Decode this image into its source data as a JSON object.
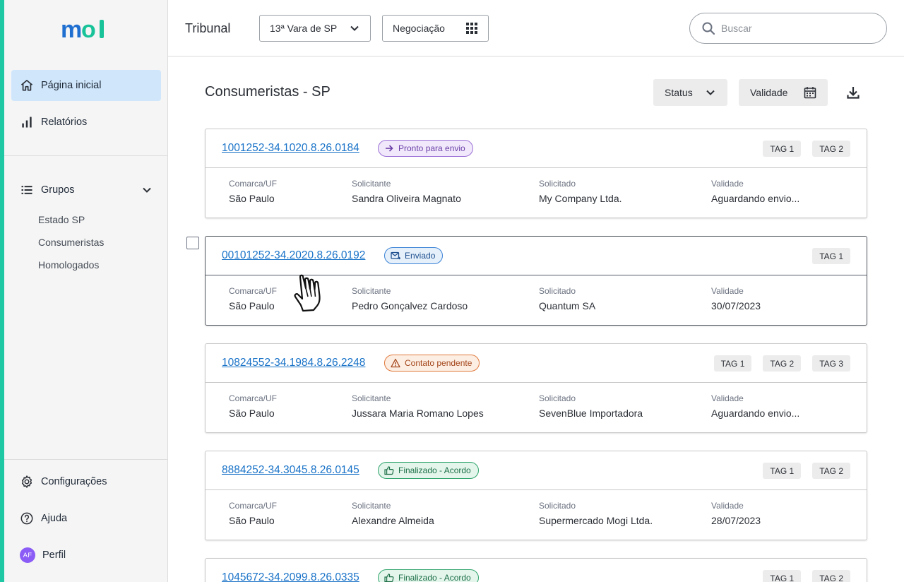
{
  "brand": {
    "logo_text": "mol",
    "accent_color": "#1ec8a5",
    "logo_blue": "#1f6fd1",
    "logo_green": "#19c39a"
  },
  "sidebar": {
    "primary": [
      {
        "label": "Página inicial",
        "icon": "home-icon",
        "active": true
      },
      {
        "label": "Relatórios",
        "icon": "bar-chart-icon",
        "active": false
      }
    ],
    "groups": {
      "label": "Grupos",
      "icon": "list-icon",
      "items": [
        "Estado SP",
        "Consumeristas",
        "Homologados"
      ]
    },
    "bottom": [
      {
        "label": "Configurações",
        "icon": "gear-icon"
      },
      {
        "label": "Ajuda",
        "icon": "help-icon"
      },
      {
        "label": "Perfil",
        "icon": "avatar",
        "avatar_initials": "AF"
      }
    ]
  },
  "topbar": {
    "title": "Tribunal",
    "court_select": "13ª Vara de SP",
    "mode_select": "Negociação",
    "search_placeholder": "Buscar"
  },
  "main": {
    "title": "Consumeristas - SP",
    "filters": {
      "status": "Status",
      "validity": "Validade"
    },
    "field_labels": {
      "comarca": "Comarca/UF",
      "solicitante": "Solicitante",
      "solicitado": "Solicitado",
      "validade": "Validade"
    },
    "cases": [
      {
        "number": "1001252-34.1020.8.26.0184",
        "status": "Pronto para envio",
        "status_icon": "arrow-right-icon",
        "status_bg": "#f1e9fb",
        "status_border": "#9b6fd6",
        "status_color": "#6b3fa8",
        "tags": [
          "TAG 1",
          "TAG 2"
        ],
        "comarca": "São Paulo",
        "solicitante": "Sandra Oliveira Magnato",
        "solicitado": "My Company Ltda.",
        "validade": "Aguardando envio..."
      },
      {
        "number": "00101252-34.2020.8.26.0192",
        "status": "Enviado",
        "status_icon": "mail-sent-icon",
        "status_bg": "#e6f0fb",
        "status_border": "#3b82d6",
        "status_color": "#1d4f8f",
        "tags": [
          "TAG 1"
        ],
        "comarca": "São Paulo",
        "solicitante": "Pedro Gonçalvez Cardoso",
        "solicitado": "Quantum SA",
        "validade": "30/07/2023"
      },
      {
        "number": "10824552-34.1984.8.26.2248",
        "status": "Contato pendente",
        "status_icon": "warning-icon",
        "status_bg": "#fdeee4",
        "status_border": "#e0783a",
        "status_color": "#a3461a",
        "tags": [
          "TAG 1",
          "TAG 2",
          "TAG 3"
        ],
        "comarca": "São Paulo",
        "solicitante": "Jussara Maria Romano Lopes",
        "solicitado": "SevenBlue Importadora",
        "validade": "Aguardando envio..."
      },
      {
        "number": "8884252-34.3045.8.26.0145",
        "status": "Finalizado - Acordo",
        "status_icon": "thumbs-up-icon",
        "status_bg": "#e4f6ec",
        "status_border": "#2fa36b",
        "status_color": "#1c6e46",
        "tags": [
          "TAG 1",
          "TAG 2"
        ],
        "comarca": "São Paulo",
        "solicitante": "Alexandre Almeida",
        "solicitado": "Supermercado Mogi Ltda.",
        "validade": "28/07/2023"
      },
      {
        "number": "1045672-34.2099.8.26.0335",
        "status": "Finalizado - Acordo",
        "status_icon": "thumbs-up-icon",
        "status_bg": "#e4f6ec",
        "status_border": "#2fa36b",
        "status_color": "#1c6e46",
        "tags": [
          "TAG 1",
          "TAG 2"
        ],
        "comarca": "",
        "solicitante": "",
        "solicitado": "",
        "validade": ""
      }
    ]
  }
}
